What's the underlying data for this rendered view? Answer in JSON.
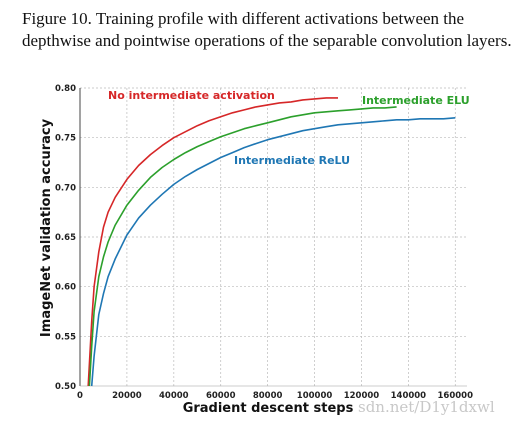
{
  "caption": "Figure 10. Training profile with different activations between the depthwise and pointwise operations of the separable convolution layers.",
  "watermark": "sdn.net/D1y1dxwl",
  "chart_data": {
    "type": "line",
    "xlabel": "Gradient descent steps",
    "ylabel": "ImageNet validation accuracy",
    "xlim": [
      0,
      165000
    ],
    "ylim": [
      0.5,
      0.8
    ],
    "xticks": [
      0,
      20000,
      40000,
      60000,
      80000,
      100000,
      120000,
      140000,
      160000
    ],
    "xtick_labels": [
      "0",
      "20000",
      "40000",
      "60000",
      "80000",
      "100000",
      "120000",
      "140000",
      "160000"
    ],
    "yticks": [
      0.5,
      0.55,
      0.6,
      0.65,
      0.7,
      0.75,
      0.8
    ],
    "ytick_labels": [
      "0.50",
      "0.55",
      "0.60",
      "0.65",
      "0.70",
      "0.75",
      "0.80"
    ],
    "grid": true,
    "series": [
      {
        "name": "No intermediate activation",
        "color": "#d62728",
        "x": [
          3500,
          5000,
          6000,
          8000,
          10000,
          12000,
          15000,
          20000,
          25000,
          30000,
          35000,
          40000,
          45000,
          50000,
          55000,
          60000,
          65000,
          70000,
          75000,
          80000,
          85000,
          90000,
          95000,
          100000,
          105000,
          110000
        ],
        "y": [
          0.5,
          0.565,
          0.6,
          0.635,
          0.66,
          0.675,
          0.69,
          0.708,
          0.722,
          0.733,
          0.742,
          0.75,
          0.756,
          0.762,
          0.767,
          0.771,
          0.775,
          0.778,
          0.781,
          0.783,
          0.785,
          0.786,
          0.788,
          0.789,
          0.79,
          0.79
        ]
      },
      {
        "name": "Intermediate ELU",
        "color": "#2ca02c",
        "x": [
          4000,
          5000,
          6000,
          8000,
          10000,
          12000,
          15000,
          20000,
          25000,
          30000,
          35000,
          40000,
          45000,
          50000,
          55000,
          60000,
          65000,
          70000,
          75000,
          80000,
          85000,
          90000,
          95000,
          100000,
          105000,
          110000,
          115000,
          120000,
          125000,
          130000,
          135000
        ],
        "y": [
          0.5,
          0.54,
          0.575,
          0.61,
          0.63,
          0.645,
          0.662,
          0.682,
          0.697,
          0.71,
          0.72,
          0.728,
          0.735,
          0.741,
          0.746,
          0.751,
          0.755,
          0.759,
          0.762,
          0.765,
          0.768,
          0.771,
          0.773,
          0.775,
          0.776,
          0.777,
          0.778,
          0.779,
          0.78,
          0.78,
          0.781
        ]
      },
      {
        "name": "Intermediate ReLU",
        "color": "#1f77b4",
        "x": [
          5000,
          6000,
          8000,
          10000,
          12000,
          15000,
          20000,
          25000,
          30000,
          35000,
          40000,
          45000,
          50000,
          55000,
          60000,
          65000,
          70000,
          75000,
          80000,
          85000,
          90000,
          95000,
          100000,
          105000,
          110000,
          115000,
          120000,
          125000,
          130000,
          135000,
          140000,
          145000,
          150000,
          155000,
          160000
        ],
        "y": [
          0.5,
          0.53,
          0.572,
          0.593,
          0.61,
          0.628,
          0.652,
          0.669,
          0.682,
          0.693,
          0.703,
          0.711,
          0.718,
          0.724,
          0.73,
          0.735,
          0.74,
          0.744,
          0.748,
          0.751,
          0.754,
          0.757,
          0.759,
          0.761,
          0.763,
          0.764,
          0.765,
          0.766,
          0.767,
          0.768,
          0.768,
          0.769,
          0.769,
          0.769,
          0.77
        ]
      }
    ]
  }
}
